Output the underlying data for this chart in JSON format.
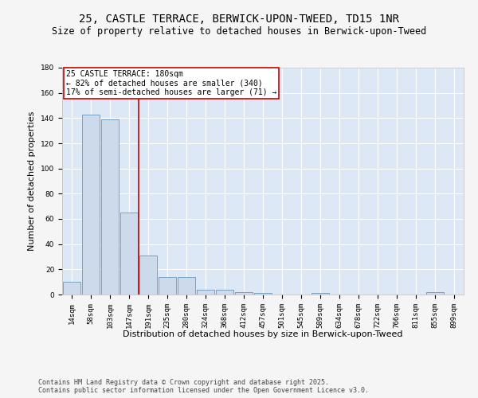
{
  "title_line1": "25, CASTLE TERRACE, BERWICK-UPON-TWEED, TD15 1NR",
  "title_line2": "Size of property relative to detached houses in Berwick-upon-Tweed",
  "xlabel": "Distribution of detached houses by size in Berwick-upon-Tweed",
  "ylabel": "Number of detached properties",
  "categories": [
    "14sqm",
    "58sqm",
    "103sqm",
    "147sqm",
    "191sqm",
    "235sqm",
    "280sqm",
    "324sqm",
    "368sqm",
    "412sqm",
    "457sqm",
    "501sqm",
    "545sqm",
    "589sqm",
    "634sqm",
    "678sqm",
    "722sqm",
    "766sqm",
    "811sqm",
    "855sqm",
    "899sqm"
  ],
  "values": [
    10,
    143,
    139,
    65,
    31,
    14,
    14,
    4,
    4,
    2,
    1,
    0,
    0,
    1,
    0,
    0,
    0,
    0,
    0,
    2,
    0
  ],
  "bar_color": "#ccdaeb",
  "bar_edge_color": "#6699bb",
  "vline_color": "#cc0000",
  "annotation_text": "25 CASTLE TERRACE: 180sqm\n← 82% of detached houses are smaller (340)\n17% of semi-detached houses are larger (71) →",
  "annotation_box_color": "#ffffff",
  "annotation_box_edge": "#cc0000",
  "ylim": [
    0,
    180
  ],
  "yticks": [
    0,
    20,
    40,
    60,
    80,
    100,
    120,
    140,
    160,
    180
  ],
  "plot_bg": "#dce8f5",
  "fig_bg": "#f5f5f5",
  "grid_color": "#ffffff",
  "footer": "Contains HM Land Registry data © Crown copyright and database right 2025.\nContains public sector information licensed under the Open Government Licence v3.0.",
  "title_fontsize": 10,
  "subtitle_fontsize": 8.5,
  "axis_label_fontsize": 8,
  "tick_fontsize": 6.5,
  "annotation_fontsize": 7,
  "footer_fontsize": 6
}
